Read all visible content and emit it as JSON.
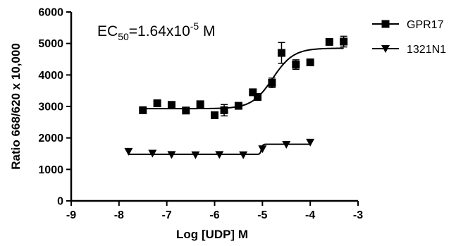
{
  "chart_data": {
    "type": "scatter",
    "title": "",
    "xlabel": "Log [UDP] M",
    "ylabel": "Ratio 668/620 x 10,000",
    "xlim": [
      -9,
      -3
    ],
    "ylim": [
      0,
      6000
    ],
    "x_ticks": [
      -9,
      -8,
      -7,
      -6,
      -5,
      -4,
      -3
    ],
    "x_tick_labels": [
      "-9",
      "-8",
      "-7",
      "-6",
      "-5",
      "-4",
      "-3"
    ],
    "y_ticks": [
      0,
      1000,
      2000,
      3000,
      4000,
      5000,
      6000
    ],
    "y_tick_labels": [
      "0",
      "1000",
      "2000",
      "3000",
      "4000",
      "5000",
      "6000"
    ],
    "grid": false,
    "legend_position": "top-right",
    "annotation": {
      "prefix": "EC",
      "subscript": "50",
      "middle": "=1.64x10",
      "superscript": "-5",
      "suffix": " M"
    },
    "series": [
      {
        "name": "GPR17",
        "marker": "square",
        "color": "#000000",
        "x": [
          -7.5,
          -7.2,
          -6.9,
          -6.6,
          -6.3,
          -6.0,
          -5.8,
          -5.5,
          -5.2,
          -5.1,
          -4.8,
          -4.6,
          -4.3,
          -4.0,
          -3.6,
          -3.3
        ],
        "y": [
          2880,
          3100,
          3050,
          2870,
          3070,
          2720,
          2880,
          3020,
          3450,
          3300,
          3750,
          4700,
          4330,
          4400,
          5050,
          5060
        ],
        "err": [
          0,
          0,
          0,
          0,
          0,
          0,
          180,
          0,
          0,
          0,
          150,
          330,
          150,
          0,
          0,
          170
        ],
        "fit": {
          "bottom": 2930,
          "top": 4850,
          "log_ec50": -4.785,
          "hill": 2
        }
      },
      {
        "name": "1321N1",
        "marker": "triangle-down",
        "color": "#000000",
        "x": [
          -7.8,
          -7.3,
          -6.9,
          -6.4,
          -5.9,
          -5.4,
          -5.0,
          -4.5,
          -4.0
        ],
        "y": [
          1570,
          1510,
          1470,
          1460,
          1470,
          1460,
          1650,
          1790,
          1860
        ],
        "err": [
          0,
          0,
          0,
          0,
          0,
          0,
          0,
          0,
          0
        ],
        "fit": {
          "bottom": 1480,
          "top": 1800,
          "log_ec50": -5.02,
          "hill": 30
        }
      }
    ]
  }
}
